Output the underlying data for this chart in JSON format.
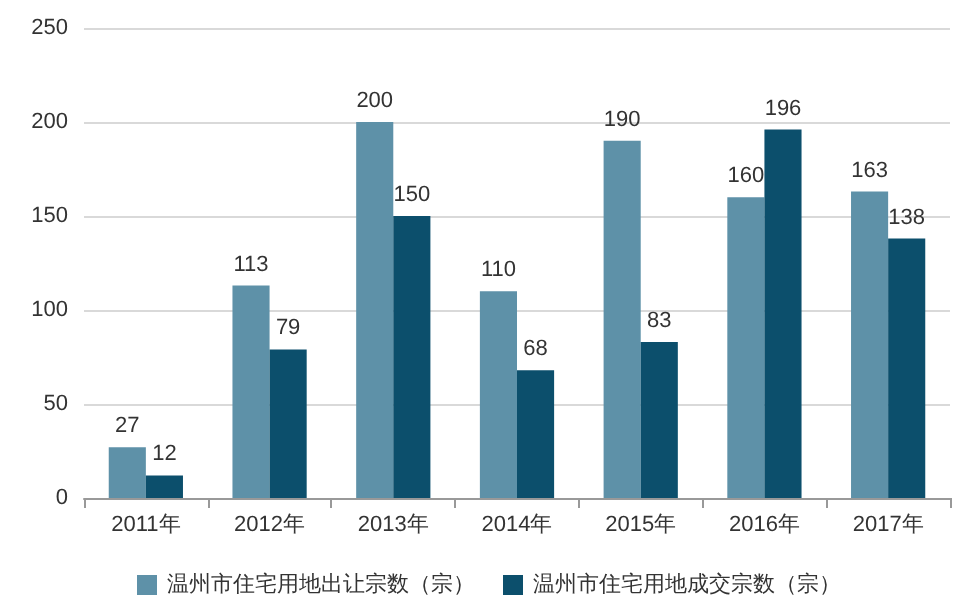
{
  "chart_data": {
    "type": "bar",
    "categories": [
      "2011年",
      "2012年",
      "2013年",
      "2014年",
      "2015年",
      "2016年",
      "2017年"
    ],
    "series": [
      {
        "name": "温州市住宅用地出让宗数（宗）",
        "color": "#5e91a8",
        "values": [
          27,
          113,
          200,
          110,
          190,
          160,
          163
        ]
      },
      {
        "name": "温州市住宅用地成交宗数（宗）",
        "color": "#0c4f6c",
        "values": [
          12,
          79,
          150,
          68,
          83,
          196,
          138
        ]
      }
    ],
    "ylim": [
      0,
      250
    ],
    "yticks": [
      0,
      50,
      100,
      150,
      200,
      250
    ],
    "grid": "y",
    "legend": "bottom",
    "data_labels": true
  }
}
